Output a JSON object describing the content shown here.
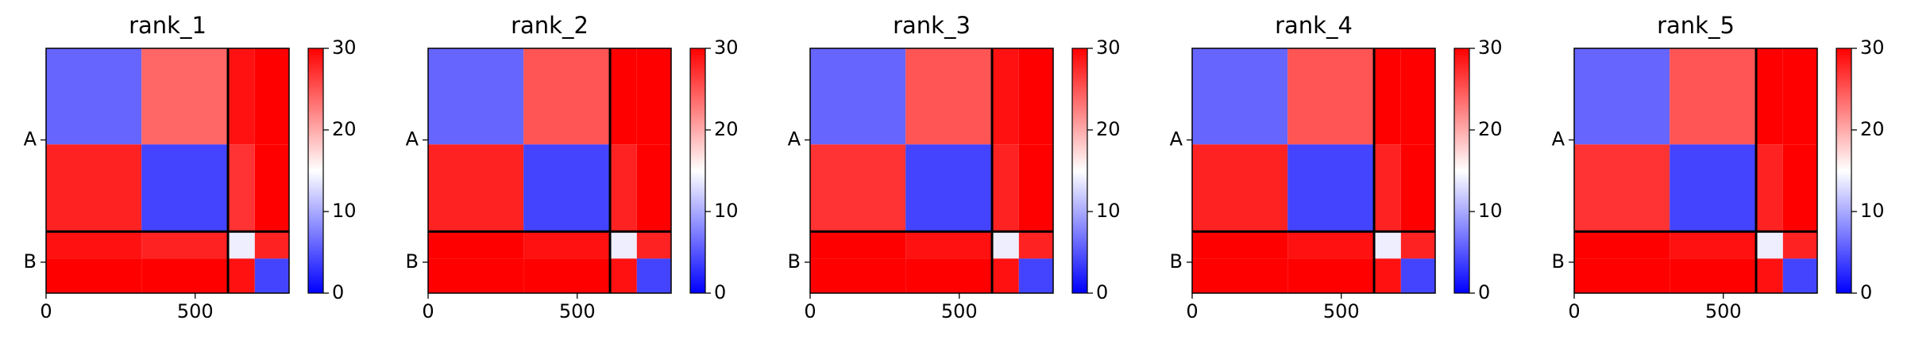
{
  "chart_data": [
    {
      "type": "heatmap",
      "title": "rank_1",
      "edges": [
        0,
        320,
        610,
        700,
        815
      ],
      "values": [
        [
          6,
          24,
          29,
          30
        ],
        [
          28,
          4,
          27,
          30
        ],
        [
          29,
          28,
          14,
          28
        ],
        [
          30,
          30,
          29,
          4
        ]
      ],
      "xlim": [
        0,
        815
      ],
      "xticks": [
        0,
        500
      ],
      "ylim": [
        815,
        0
      ],
      "yticks": [
        {
          "value": 305,
          "label": "A"
        },
        {
          "value": 712,
          "label": "B"
        }
      ],
      "chain_breaks": [
        610
      ],
      "clim": [
        0,
        30
      ],
      "cticks": [
        0,
        10,
        20,
        30
      ],
      "colormap": "bwr"
    },
    {
      "type": "heatmap",
      "title": "rank_2",
      "edges": [
        0,
        320,
        610,
        700,
        815
      ],
      "values": [
        [
          6,
          25,
          30,
          30
        ],
        [
          28,
          4,
          28,
          30
        ],
        [
          30,
          29,
          14,
          28
        ],
        [
          30,
          30,
          29,
          4
        ]
      ],
      "xlim": [
        0,
        815
      ],
      "xticks": [
        0,
        500
      ],
      "ylim": [
        815,
        0
      ],
      "yticks": [
        {
          "value": 305,
          "label": "A"
        },
        {
          "value": 712,
          "label": "B"
        }
      ],
      "chain_breaks": [
        610
      ],
      "clim": [
        0,
        30
      ],
      "cticks": [
        0,
        10,
        20,
        30
      ],
      "colormap": "bwr"
    },
    {
      "type": "heatmap",
      "title": "rank_3",
      "edges": [
        0,
        320,
        610,
        700,
        815
      ],
      "values": [
        [
          6,
          25,
          29,
          30
        ],
        [
          27,
          4,
          28,
          30
        ],
        [
          30,
          29,
          14,
          28
        ],
        [
          30,
          30,
          29,
          4
        ]
      ],
      "xlim": [
        0,
        815
      ],
      "xticks": [
        0,
        500
      ],
      "ylim": [
        815,
        0
      ],
      "yticks": [
        {
          "value": 305,
          "label": "A"
        },
        {
          "value": 712,
          "label": "B"
        }
      ],
      "chain_breaks": [
        610
      ],
      "clim": [
        0,
        30
      ],
      "cticks": [
        0,
        10,
        20,
        30
      ],
      "colormap": "bwr"
    },
    {
      "type": "heatmap",
      "title": "rank_4",
      "edges": [
        0,
        320,
        610,
        700,
        815
      ],
      "values": [
        [
          6,
          25,
          30,
          30
        ],
        [
          28,
          4,
          28,
          30
        ],
        [
          30,
          29,
          14,
          28
        ],
        [
          30,
          30,
          29,
          4
        ]
      ],
      "xlim": [
        0,
        815
      ],
      "xticks": [
        0,
        500
      ],
      "ylim": [
        815,
        0
      ],
      "yticks": [
        {
          "value": 305,
          "label": "A"
        },
        {
          "value": 712,
          "label": "B"
        }
      ],
      "chain_breaks": [
        610
      ],
      "clim": [
        0,
        30
      ],
      "cticks": [
        0,
        10,
        20,
        30
      ],
      "colormap": "bwr"
    },
    {
      "type": "heatmap",
      "title": "rank_5",
      "edges": [
        0,
        320,
        610,
        700,
        815
      ],
      "values": [
        [
          6,
          25,
          30,
          30
        ],
        [
          27,
          4,
          28,
          30
        ],
        [
          30,
          29,
          14,
          28
        ],
        [
          30,
          30,
          29,
          4
        ]
      ],
      "xlim": [
        0,
        815
      ],
      "xticks": [
        0,
        500
      ],
      "ylim": [
        815,
        0
      ],
      "yticks": [
        {
          "value": 305,
          "label": "A"
        },
        {
          "value": 712,
          "label": "B"
        }
      ],
      "chain_breaks": [
        610
      ],
      "clim": [
        0,
        30
      ],
      "cticks": [
        0,
        10,
        20,
        30
      ],
      "colormap": "bwr"
    }
  ]
}
